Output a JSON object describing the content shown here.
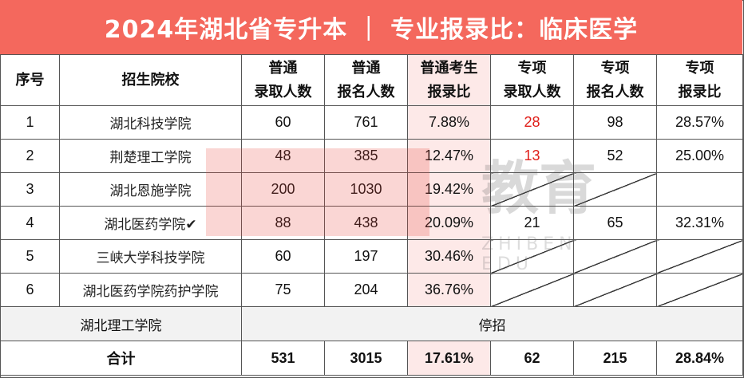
{
  "title": "2024年湖北省专升本 ｜ 专业报录比：临床医学",
  "headers": {
    "seq": "序号",
    "school": "招生院校",
    "reg_admit_1": "普通",
    "reg_admit_2": "录取人数",
    "reg_apply_1": "普通",
    "reg_apply_2": "报名人数",
    "reg_ratio_1": "普通考生",
    "reg_ratio_2": "报录比",
    "sp_admit_1": "专项",
    "sp_admit_2": "录取人数",
    "sp_apply_1": "专项",
    "sp_apply_2": "报名人数",
    "sp_ratio_1": "专项",
    "sp_ratio_2": "报录比"
  },
  "rows": [
    {
      "seq": "1",
      "school": "湖北科技学院",
      "reg_admit": "60",
      "reg_apply": "761",
      "reg_ratio": "7.88%",
      "sp_admit": "28",
      "sp_apply": "98",
      "sp_ratio": "28.57%"
    },
    {
      "seq": "2",
      "school": "荆楚理工学院",
      "reg_admit": "48",
      "reg_apply": "385",
      "reg_ratio": "12.47%",
      "sp_admit": "13",
      "sp_apply": "52",
      "sp_ratio": "25.00%"
    },
    {
      "seq": "3",
      "school": "湖北恩施学院",
      "reg_admit": "200",
      "reg_apply": "1030",
      "reg_ratio": "19.42%"
    },
    {
      "seq": "4",
      "school": "湖北医药学院✔",
      "reg_admit": "88",
      "reg_apply": "438",
      "reg_ratio": "20.09%",
      "sp_admit": "21",
      "sp_apply": "65",
      "sp_ratio": "32.31%"
    },
    {
      "seq": "5",
      "school": "三峡大学科技学院",
      "reg_admit": "60",
      "reg_apply": "197",
      "reg_ratio": "30.46%"
    },
    {
      "seq": "6",
      "school": "湖北医药学院药护学院",
      "reg_admit": "75",
      "reg_apply": "204",
      "reg_ratio": "36.76%"
    }
  ],
  "closed": {
    "school": "湖北理工学院",
    "status": "停招"
  },
  "total": {
    "label": "合计",
    "reg_admit": "531",
    "reg_apply": "3015",
    "reg_ratio": "17.61%",
    "sp_admit": "62",
    "sp_apply": "215",
    "sp_ratio": "28.84%"
  },
  "watermark": {
    "brand": "教育",
    "sub": "ZHIBEN EDU"
  },
  "colors": {
    "title_bg": "#f4685d",
    "ratio_highlight": "#fde9e8",
    "red_value": "#e0201b"
  }
}
